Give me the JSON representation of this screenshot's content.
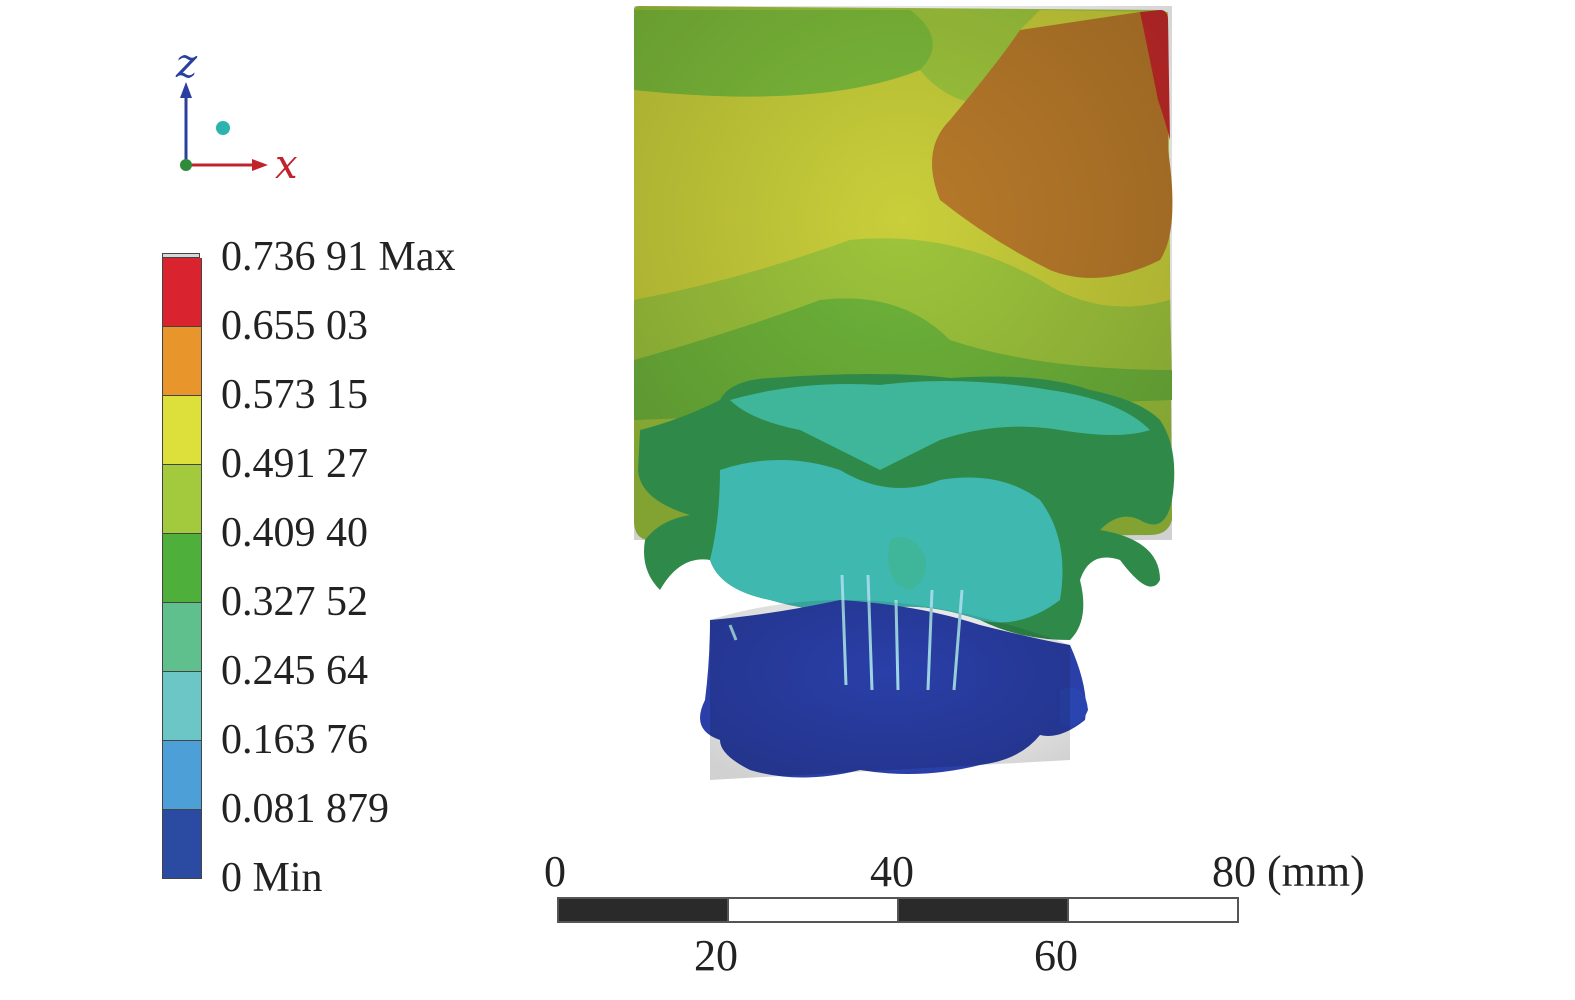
{
  "axes": {
    "z_label": "z",
    "x_label": "x",
    "z_color": "#2a3f9e",
    "x_color": "#c0242a",
    "origin_color": "#2e8b3a",
    "dot_color": "#2bb3b0"
  },
  "legend": {
    "labels": [
      "0.736 91 Max",
      "0.655 03",
      "0.573 15",
      "0.491 27",
      "0.409 40",
      "0.327 52",
      "0.245 64",
      "0.163 76",
      "0.081 879",
      "0 Min"
    ],
    "colors": [
      "#d9242f",
      "#e8962b",
      "#dde03a",
      "#a3ca3c",
      "#4faf3b",
      "#5fc08e",
      "#6cc6c6",
      "#4d9fd8",
      "#2b4ba3"
    ]
  },
  "scale_bar": {
    "top_labels": [
      "0",
      "40",
      "80 (mm)"
    ],
    "bottom_labels": [
      "20",
      "60"
    ],
    "segment_colors": [
      "#2a2a2a",
      "#ffffff",
      "#2a2a2a",
      "#ffffff"
    ]
  },
  "model_colors": {
    "red": "#c62a2a",
    "orange": "#b87a2a",
    "yellow": "#c9cf3a",
    "lime": "#9ec53c",
    "green": "#6fb53a",
    "darkgreen": "#2f8a4a",
    "teal": "#3fb59a",
    "cyan": "#3fb8b0",
    "blue": "#2a3fa8"
  }
}
